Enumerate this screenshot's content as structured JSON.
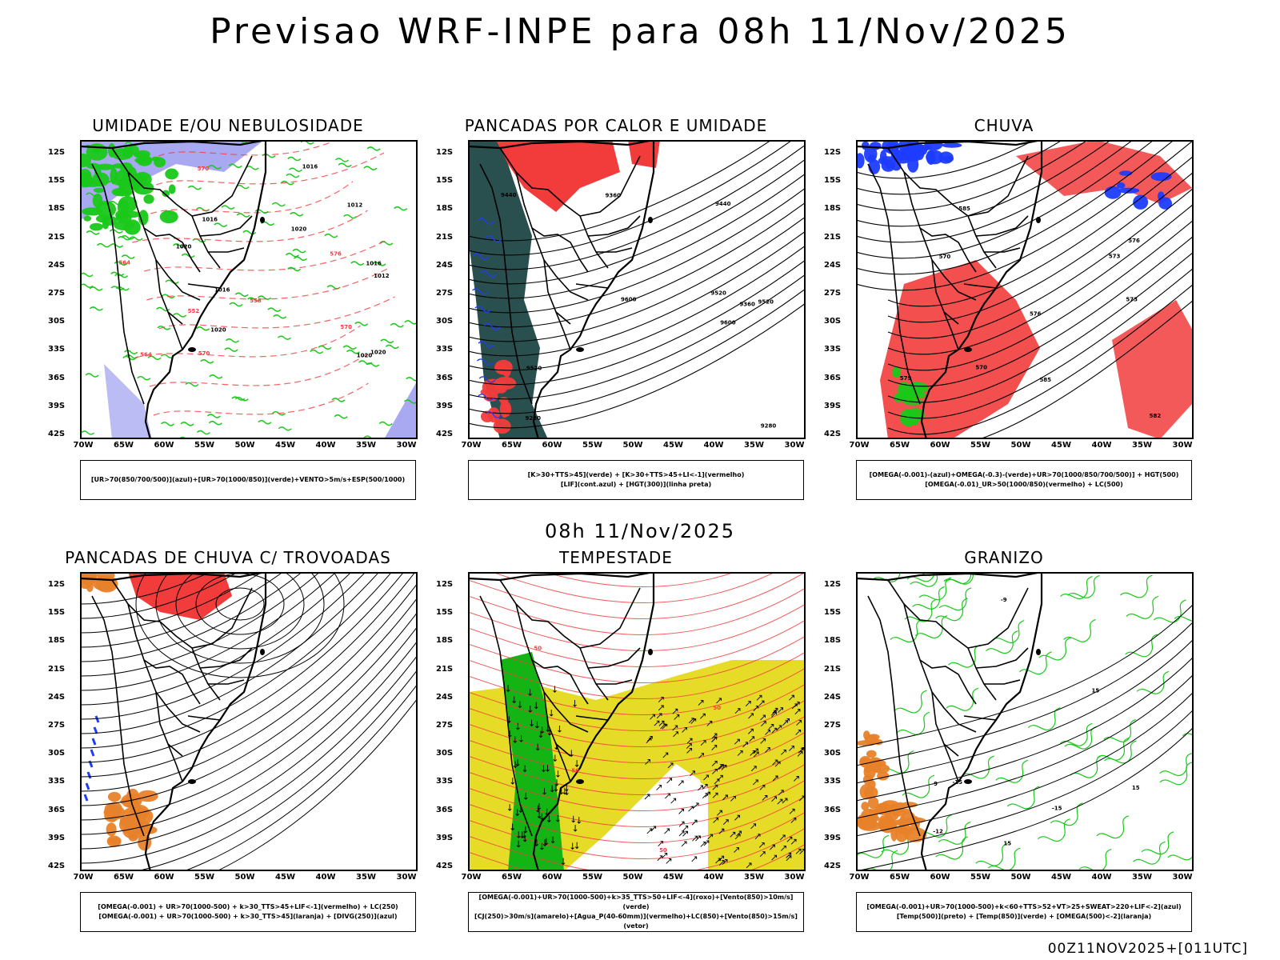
{
  "title": "Previsao WRF-INPE  para 08h 11/Nov/2025",
  "mid_title": "08h 11/Nov/2025",
  "footer": "00Z11NOV2025+[011UTC]",
  "lat_labels": [
    "12S",
    "15S",
    "18S",
    "21S",
    "24S",
    "27S",
    "30S",
    "33S",
    "36S",
    "39S",
    "42S"
  ],
  "lon_labels": [
    "70W",
    "65W",
    "60W",
    "55W",
    "50W",
    "45W",
    "40W",
    "35W",
    "30W"
  ],
  "panels": [
    {
      "title": "UMIDADE E/OU NEBULOSIDADE",
      "legend": [
        "[UR>70(850/700/500)](azul)+[UR>70(1000/850)](verde)+VENTO>5m/s+ESP(500/1000)"
      ],
      "contour_labels": [
        "1016",
        "1016",
        "1020",
        "1012",
        "1016",
        "1020",
        "1020",
        "1016",
        "1020",
        "1012",
        "1020",
        "570",
        "576",
        "570",
        "564",
        "558",
        "552",
        "564",
        "570"
      ]
    },
    {
      "title": "PANCADAS POR CALOR E UMIDADE",
      "legend": [
        "[K>30+TTS>45](verde) + [K>30+TTS>45+LI<-1](vermelho)",
        "[LIF](cont.azul) + [HGT(300)](linha preta)"
      ],
      "contour_labels": [
        "9600",
        "9520",
        "9600",
        "9440",
        "9520",
        "9360",
        "9520",
        "9440",
        "9360",
        "9280",
        "9280"
      ]
    },
    {
      "title": "CHUVA",
      "legend": [
        "[OMEGA(-0.001)-(azul)+OMEGA(-0.3)-(verde)+UR>70(1000/850/700/500)] + HGT(500)",
        "[OMEGA(-0.01)_UR>50(1000/850)(vermelho) + LC(500)"
      ],
      "contour_labels": [
        "585",
        "585",
        "582",
        "579",
        "576",
        "573",
        "570",
        "576",
        "573",
        "570"
      ]
    },
    {
      "title": "PANCADAS DE CHUVA C/ TROVOADAS",
      "legend": [
        "[OMEGA(-0.001) + UR>70(1000-500) + k>30_TTS>45+LIF<-1](vermelho) + LC(250)",
        "[OMEGA(-0.001) + UR>70(1000-500) + k>30_TTS>45](laranja) + [DIVG(250)](azul)"
      ],
      "contour_labels": []
    },
    {
      "title": "TEMPESTADE",
      "legend": [
        "[OMEGA(-0.001)+UR>70(1000-500)+k>35_TTS>50+LIF<-4](roxo)+[Vento(850)>10m/s](verde)",
        "[CJ(250)>30m/s](amarelo)+[Agua_P(40-60mm)](vermelho)+LC(850)+[Vento(850)>15m/s](vetor)"
      ],
      "contour_labels": [
        "50",
        "50",
        "50",
        "50"
      ]
    },
    {
      "title": "GRANIZO",
      "legend": [
        "[OMEGA(-0.001)+UR>70(1000-500)+k<60+TTS>52+VT>25+SWEAT>220+LIF<-2](azul)",
        "[Temp(500)](preto) + [Temp(850)](verde) + [OMEGA(500)<-2](laranja)"
      ],
      "contour_labels": [
        "15",
        "15",
        "-9",
        "-12",
        "-15",
        "-15",
        "15",
        "-9"
      ]
    }
  ],
  "colors": {
    "red": "#f23c3c",
    "green": "#19c819",
    "blue": "#1e3cff",
    "lavender": "#a0a0f0",
    "darkteal": "#1e4646",
    "yellow": "#e6dc28",
    "orange": "#e8822a",
    "brightgreen": "#14b414"
  }
}
